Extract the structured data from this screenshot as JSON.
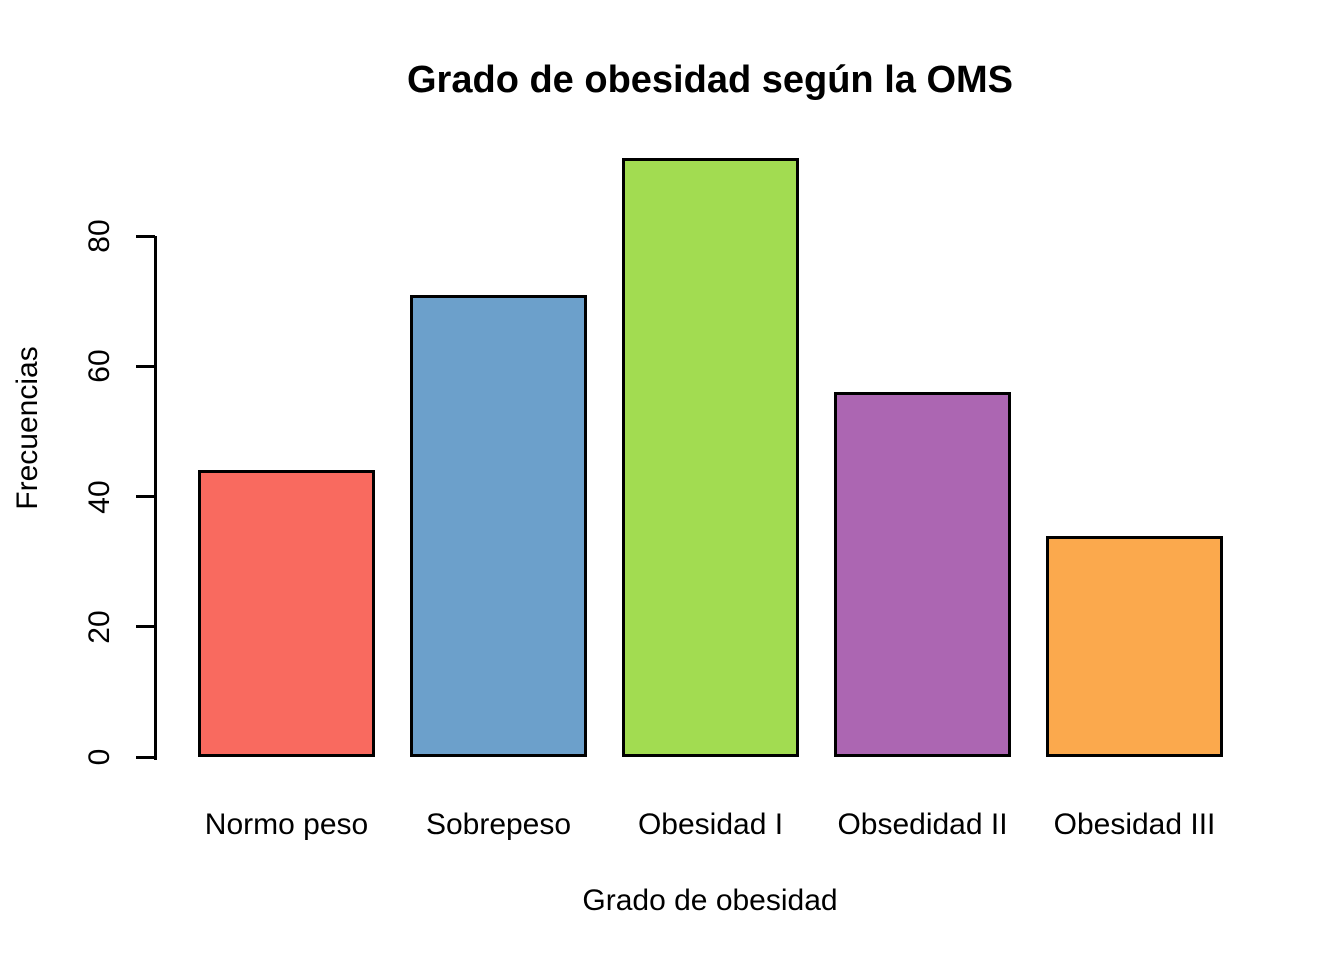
{
  "chart_data": {
    "type": "bar",
    "title": "Grado de obesidad según la OMS",
    "xlabel": "Grado de obesidad",
    "ylabel": "Frecuencias",
    "categories": [
      "Normo peso",
      "Sobrepeso",
      "Obesidad I",
      "Obsedidad II",
      "Obesidad III"
    ],
    "values": [
      44,
      71,
      92,
      56,
      34
    ],
    "bar_colors": [
      "#F96A5F",
      "#6CA0CB",
      "#A2DC51",
      "#AC66B2",
      "#FBA94D"
    ],
    "bar_border_color": "#000000",
    "axis_color": "#000000",
    "text_color": "#000000",
    "background_color": "#FFFFFF",
    "yticks": [
      0,
      20,
      40,
      60,
      80
    ],
    "ylim": [
      0,
      92
    ],
    "grid": false,
    "legend": false
  }
}
